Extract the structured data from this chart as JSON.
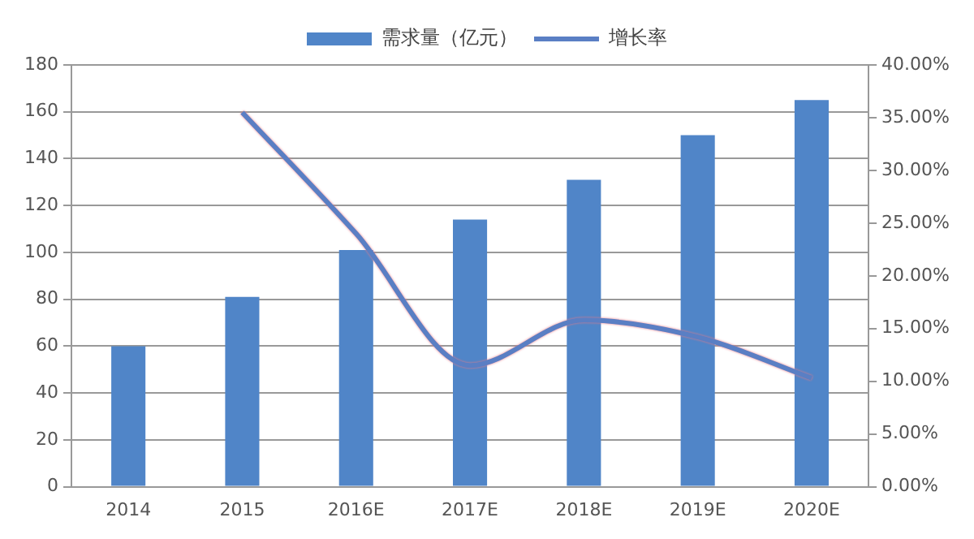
{
  "chart_data": {
    "type": "bar",
    "categories": [
      "2014",
      "2015",
      "2016E",
      "2017E",
      "2018E",
      "2019E",
      "2020E"
    ],
    "series": [
      {
        "name": "需求量（亿元）",
        "color": "#5085c8",
        "values": [
          60,
          81,
          101,
          114,
          131,
          150,
          165
        ]
      },
      {
        "name": "增长率",
        "type": "line",
        "axis": "y2",
        "color": "#5a7fc4",
        "values": [
          null,
          35.5,
          24,
          11.5,
          15.8,
          14.2,
          10.3
        ]
      }
    ],
    "ylim": [
      0,
      180
    ],
    "yticks": [
      0,
      20,
      40,
      60,
      80,
      100,
      120,
      140,
      160,
      180
    ],
    "y2lim": [
      0,
      40
    ],
    "y2ticks": [
      {
        "value": 0,
        "label": "0.00%"
      },
      {
        "value": 5,
        "label": "5.00%"
      },
      {
        "value": 10,
        "label": "10.00%"
      },
      {
        "value": 15,
        "label": "15.00%"
      },
      {
        "value": 20,
        "label": "20.00%"
      },
      {
        "value": 25,
        "label": "25.00%"
      },
      {
        "value": 30,
        "label": "30.00%"
      },
      {
        "value": 35,
        "label": "35.00%"
      },
      {
        "value": 40,
        "label": "40.00%"
      }
    ],
    "grid": "y",
    "legend": "top",
    "marker": "none"
  }
}
